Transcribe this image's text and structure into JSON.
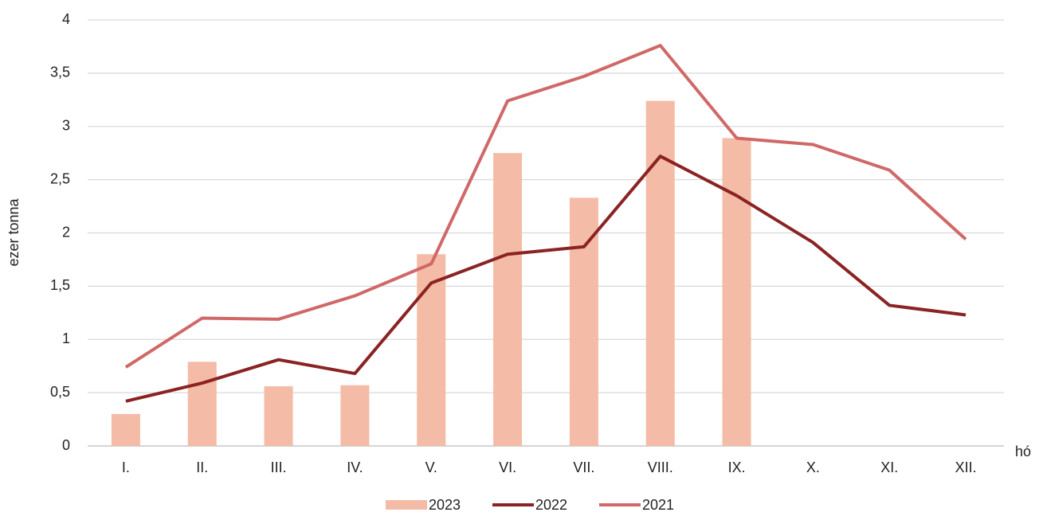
{
  "chart_data": {
    "type": "combo",
    "y_label": "ezer tonna",
    "x_label": "hó",
    "categories": [
      "I.",
      "II.",
      "III.",
      "IV.",
      "V.",
      "VI.",
      "VII.",
      "VIII.",
      "IX.",
      "X.",
      "XI.",
      "XII."
    ],
    "series": [
      {
        "name": "2023",
        "type": "bar",
        "color": "#f4bba6",
        "values": [
          0.3,
          0.79,
          0.56,
          0.57,
          1.8,
          2.75,
          2.33,
          3.24,
          2.89,
          null,
          null,
          null
        ]
      },
      {
        "name": "2022",
        "type": "line",
        "color": "#8b2323",
        "values": [
          0.42,
          0.59,
          0.81,
          0.68,
          1.53,
          1.8,
          1.87,
          2.72,
          2.35,
          1.91,
          1.32,
          1.23
        ]
      },
      {
        "name": "2021",
        "type": "line",
        "color": "#d06868",
        "values": [
          0.74,
          1.2,
          1.19,
          1.41,
          1.71,
          3.24,
          3.47,
          3.76,
          2.89,
          2.83,
          2.59,
          1.94
        ]
      }
    ],
    "ylim": [
      0,
      4
    ],
    "yticks": [
      0,
      {
        "value": 0.5,
        "label": "0,5"
      },
      1,
      {
        "value": 1.5,
        "label": "1,5"
      },
      2,
      {
        "value": 2.5,
        "label": "2,5"
      },
      3,
      {
        "value": 3.5,
        "label": "3,5"
      },
      4
    ],
    "grid": true,
    "legend": "bottom"
  }
}
